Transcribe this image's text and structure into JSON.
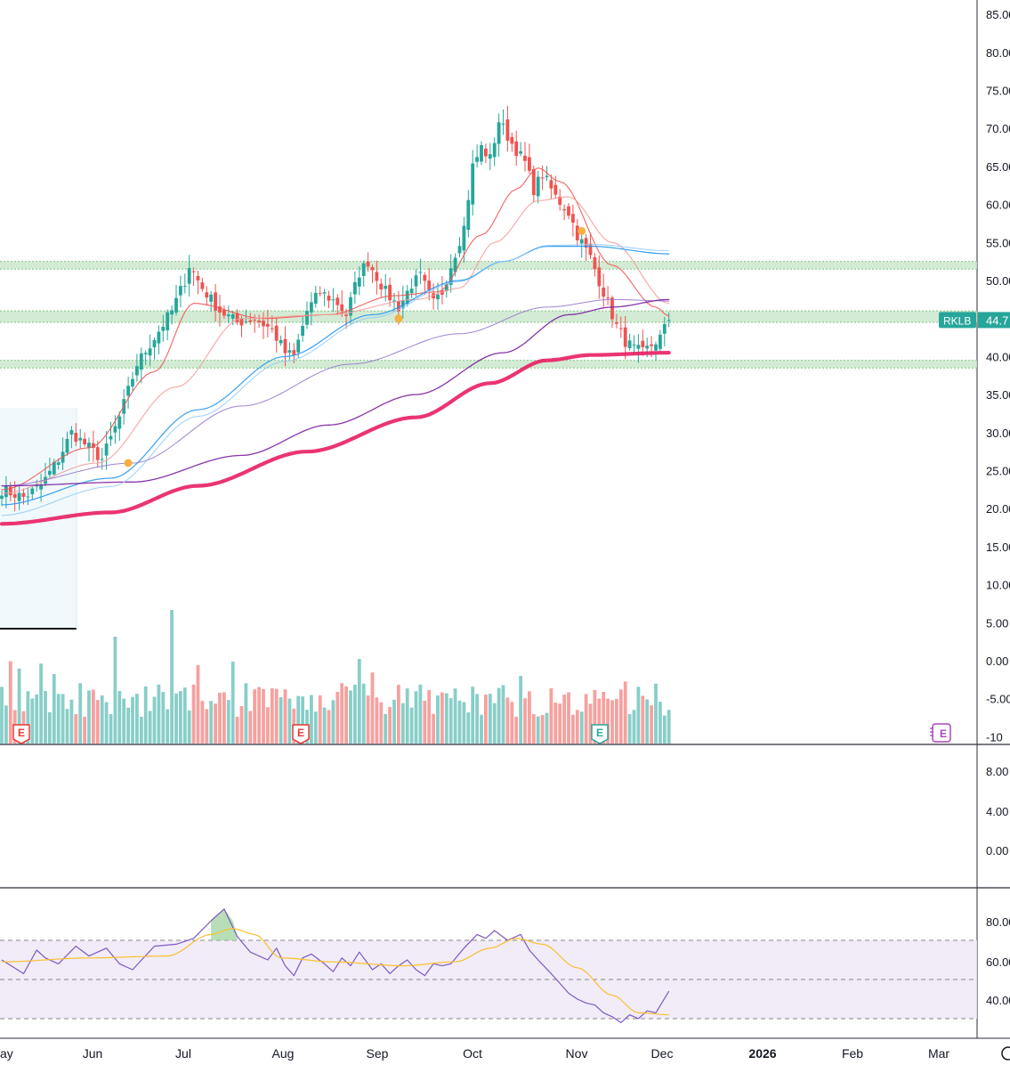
{
  "chart_data": {
    "type": "candlestick",
    "symbol": "RKLB",
    "last_price_label": "44.7",
    "colors": {
      "up": "#26a69a",
      "down": "#ef5350",
      "ema_fast": "#ef5350",
      "ema_slow": "#f59c9a",
      "sma_50": "#2196f3",
      "sma_100": "#9575cd",
      "sma_150": "#7b1fa2",
      "sma_200": "#e91e63",
      "support_zone": "#c8e6c9",
      "rsi_line": "#7e57c2",
      "rsi_ma": "#fbc02d",
      "rsi_band": "#ede7f6",
      "price_badge": "#26a69a",
      "earnings": "#e53935",
      "earnings_upcoming": "#ab47bc"
    },
    "price_axis": {
      "ticks": [
        "85.00",
        "80.00",
        "75.00",
        "70.00",
        "65.00",
        "60.00",
        "55.00",
        "50.00",
        "45.00",
        "40.00",
        "35.00",
        "30.00",
        "25.00",
        "20.00",
        "15.00",
        "10.00",
        "5.00",
        "0.00",
        "-5.00",
        "-10"
      ],
      "range": [
        -10,
        85
      ]
    },
    "volume_axis_ticks": [
      "8.00",
      "4.00",
      "0.00"
    ],
    "rsi_axis_ticks": [
      "80.00",
      "60.00",
      "40.00"
    ],
    "rsi_levels": [
      70,
      50,
      30
    ],
    "x_axis_labels": [
      "ay",
      "Jun",
      "Jul",
      "Aug",
      "Sep",
      "Oct",
      "Nov",
      "Dec",
      "2026",
      "Feb",
      "Mar"
    ],
    "support_zones": [
      [
        51.5,
        52.5
      ],
      [
        44.5,
        46
      ],
      [
        38.5,
        39.5
      ]
    ],
    "earnings_markers": [
      "E",
      "E",
      "E",
      "E"
    ],
    "series": [
      {
        "name": "price",
        "anchors": [
          [
            0,
            22.5
          ],
          [
            5,
            21.5
          ],
          [
            9,
            23
          ],
          [
            13,
            26.5
          ],
          [
            16,
            30
          ],
          [
            20,
            28
          ],
          [
            23,
            26.5
          ],
          [
            27,
            32
          ],
          [
            31,
            39
          ],
          [
            35,
            42.5
          ],
          [
            39,
            46
          ],
          [
            42,
            50
          ],
          [
            43,
            52
          ],
          [
            46,
            49
          ],
          [
            50,
            46
          ],
          [
            54,
            44.5
          ],
          [
            58,
            45
          ],
          [
            62,
            43.5
          ],
          [
            65,
            40.5
          ],
          [
            67,
            40
          ],
          [
            70,
            46
          ],
          [
            73,
            48.5
          ],
          [
            77,
            47
          ],
          [
            79,
            45.5
          ],
          [
            82,
            51
          ],
          [
            84,
            52.5
          ],
          [
            88,
            48.5
          ],
          [
            91,
            46.5
          ],
          [
            94,
            49.5
          ],
          [
            96,
            50.5
          ],
          [
            99,
            47
          ],
          [
            101,
            48.5
          ],
          [
            103,
            52
          ],
          [
            106,
            57
          ],
          [
            108,
            65
          ],
          [
            110,
            67.5
          ],
          [
            112,
            66
          ],
          [
            114,
            71
          ],
          [
            117,
            68
          ],
          [
            120,
            65.5
          ],
          [
            122,
            62
          ],
          [
            124,
            64
          ],
          [
            127,
            61
          ],
          [
            130,
            59
          ],
          [
            132,
            56
          ],
          [
            135,
            53
          ],
          [
            137,
            50
          ],
          [
            139,
            47
          ],
          [
            141,
            44
          ],
          [
            143,
            42
          ],
          [
            145,
            41
          ],
          [
            147,
            40.5
          ],
          [
            149,
            41.5
          ],
          [
            151,
            42.5
          ],
          [
            153,
            44.8
          ]
        ]
      },
      {
        "name": "EMA 10",
        "anchors": [
          [
            0,
            22.5
          ],
          [
            20,
            28
          ],
          [
            35,
            38
          ],
          [
            44,
            47
          ],
          [
            60,
            45
          ],
          [
            75,
            45.5
          ],
          [
            90,
            48
          ],
          [
            100,
            48.5
          ],
          [
            110,
            56
          ],
          [
            118,
            62
          ],
          [
            123,
            64.8
          ],
          [
            128,
            63
          ],
          [
            140,
            52
          ],
          [
            150,
            46.5
          ],
          [
            153,
            45.3
          ]
        ]
      },
      {
        "name": "EMA 20",
        "anchors": [
          [
            0,
            22
          ],
          [
            22,
            26
          ],
          [
            40,
            36
          ],
          [
            55,
            45
          ],
          [
            75,
            45.5
          ],
          [
            95,
            47.5
          ],
          [
            105,
            49
          ],
          [
            113,
            55
          ],
          [
            123,
            60.5
          ],
          [
            130,
            61
          ],
          [
            140,
            55
          ],
          [
            153,
            47
          ]
        ]
      },
      {
        "name": "SMA 50",
        "anchors": [
          [
            0,
            20.5
          ],
          [
            25,
            24
          ],
          [
            45,
            33
          ],
          [
            65,
            40
          ],
          [
            85,
            45.5
          ],
          [
            105,
            50
          ],
          [
            115,
            52.5
          ],
          [
            125,
            54.5
          ],
          [
            135,
            54.5
          ],
          [
            153,
            53.5
          ]
        ]
      },
      {
        "name": "SMA 100",
        "anchors": [
          [
            0,
            23
          ],
          [
            30,
            26
          ],
          [
            55,
            33.5
          ],
          [
            80,
            39
          ],
          [
            105,
            43
          ],
          [
            125,
            46.5
          ],
          [
            140,
            47.5
          ],
          [
            153,
            47.3
          ]
        ]
      },
      {
        "name": "SMA 150",
        "anchors": [
          [
            0,
            23
          ],
          [
            30,
            23.5
          ],
          [
            55,
            27
          ],
          [
            75,
            31
          ],
          [
            95,
            35
          ],
          [
            115,
            40.5
          ],
          [
            130,
            45.5
          ],
          [
            140,
            46.5
          ],
          [
            153,
            47.5
          ]
        ]
      },
      {
        "name": "SMA 200",
        "anchors": [
          [
            0,
            18
          ],
          [
            25,
            19.5
          ],
          [
            45,
            23
          ],
          [
            70,
            27.5
          ],
          [
            95,
            32
          ],
          [
            112,
            36.5
          ],
          [
            125,
            39.5
          ],
          [
            135,
            40.2
          ],
          [
            153,
            40.5
          ]
        ]
      },
      {
        "name": "RSI",
        "anchors": [
          [
            0,
            60
          ],
          [
            5,
            53
          ],
          [
            8,
            65
          ],
          [
            10,
            61
          ],
          [
            13,
            58
          ],
          [
            17,
            67
          ],
          [
            20,
            62
          ],
          [
            24,
            66
          ],
          [
            27,
            58
          ],
          [
            30,
            55
          ],
          [
            35,
            67
          ],
          [
            40,
            68
          ],
          [
            44,
            71
          ],
          [
            48,
            80
          ],
          [
            51,
            86
          ],
          [
            54,
            72
          ],
          [
            57,
            64
          ],
          [
            61,
            60
          ],
          [
            63,
            66
          ],
          [
            65,
            57
          ],
          [
            67,
            52
          ],
          [
            69,
            61
          ],
          [
            71,
            63
          ],
          [
            74,
            58
          ],
          [
            76,
            54
          ],
          [
            78,
            61
          ],
          [
            80,
            57
          ],
          [
            82,
            64
          ],
          [
            85,
            55
          ],
          [
            87,
            58
          ],
          [
            89,
            53
          ],
          [
            91,
            57
          ],
          [
            93,
            60
          ],
          [
            95,
            55
          ],
          [
            97,
            52
          ],
          [
            99,
            58
          ],
          [
            101,
            57
          ],
          [
            103,
            58
          ],
          [
            106,
            66
          ],
          [
            109,
            73
          ],
          [
            111,
            71
          ],
          [
            113,
            75
          ],
          [
            116,
            70
          ],
          [
            119,
            73
          ],
          [
            121,
            65
          ],
          [
            123,
            60
          ],
          [
            126,
            53
          ],
          [
            128,
            48
          ],
          [
            130,
            43
          ],
          [
            132,
            40
          ],
          [
            134,
            38
          ],
          [
            136,
            37
          ],
          [
            138,
            33
          ],
          [
            140,
            31
          ],
          [
            142,
            28
          ],
          [
            144,
            32
          ],
          [
            146,
            30
          ],
          [
            148,
            34
          ],
          [
            150,
            33
          ],
          [
            153,
            44
          ]
        ]
      },
      {
        "name": "RSI MA",
        "anchors": [
          [
            0,
            59
          ],
          [
            20,
            61
          ],
          [
            38,
            62
          ],
          [
            48,
            73
          ],
          [
            53,
            76
          ],
          [
            58,
            73
          ],
          [
            64,
            61
          ],
          [
            76,
            59
          ],
          [
            92,
            57
          ],
          [
            104,
            59
          ],
          [
            112,
            66
          ],
          [
            118,
            71
          ],
          [
            124,
            68
          ],
          [
            132,
            56
          ],
          [
            140,
            42
          ],
          [
            146,
            33
          ],
          [
            153,
            32
          ]
        ]
      }
    ]
  }
}
